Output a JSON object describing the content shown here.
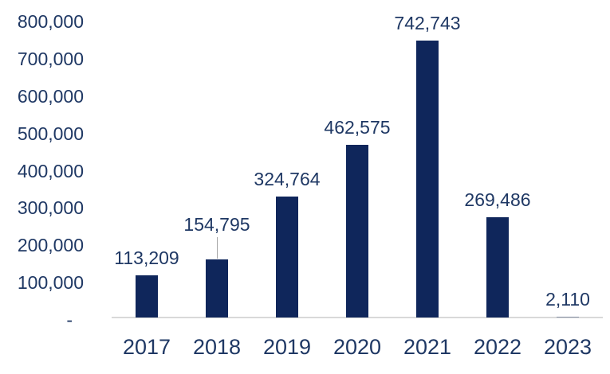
{
  "chart_data": {
    "type": "bar",
    "title": "",
    "xlabel": "",
    "ylabel": "",
    "categories": [
      "2017",
      "2018",
      "2019",
      "2020",
      "2021",
      "2022",
      "2023"
    ],
    "values": [
      113209,
      154795,
      324764,
      462575,
      742743,
      269486,
      2110
    ],
    "data_labels": [
      "113,209",
      "154,795",
      "324,764",
      "462,575",
      "742,743",
      "269,486",
      "2,110"
    ],
    "leader_lines": [
      false,
      true,
      false,
      false,
      false,
      false,
      false
    ],
    "ylim": [
      0,
      800000
    ],
    "ytick_step": 100000,
    "ytick_labels": [
      "-",
      "100,000",
      "200,000",
      "300,000",
      "400,000",
      "500,000",
      "600,000",
      "700,000",
      "800,000"
    ],
    "grid": false,
    "legend": null,
    "colors": {
      "bar": "#0F265B",
      "bar_faint": "rgba(15,38,91,0.40)",
      "text": "#1F3864",
      "axis_line": "#D9D9D9",
      "leader_line": "#A6A6A6",
      "background": "#FFFFFF"
    }
  }
}
